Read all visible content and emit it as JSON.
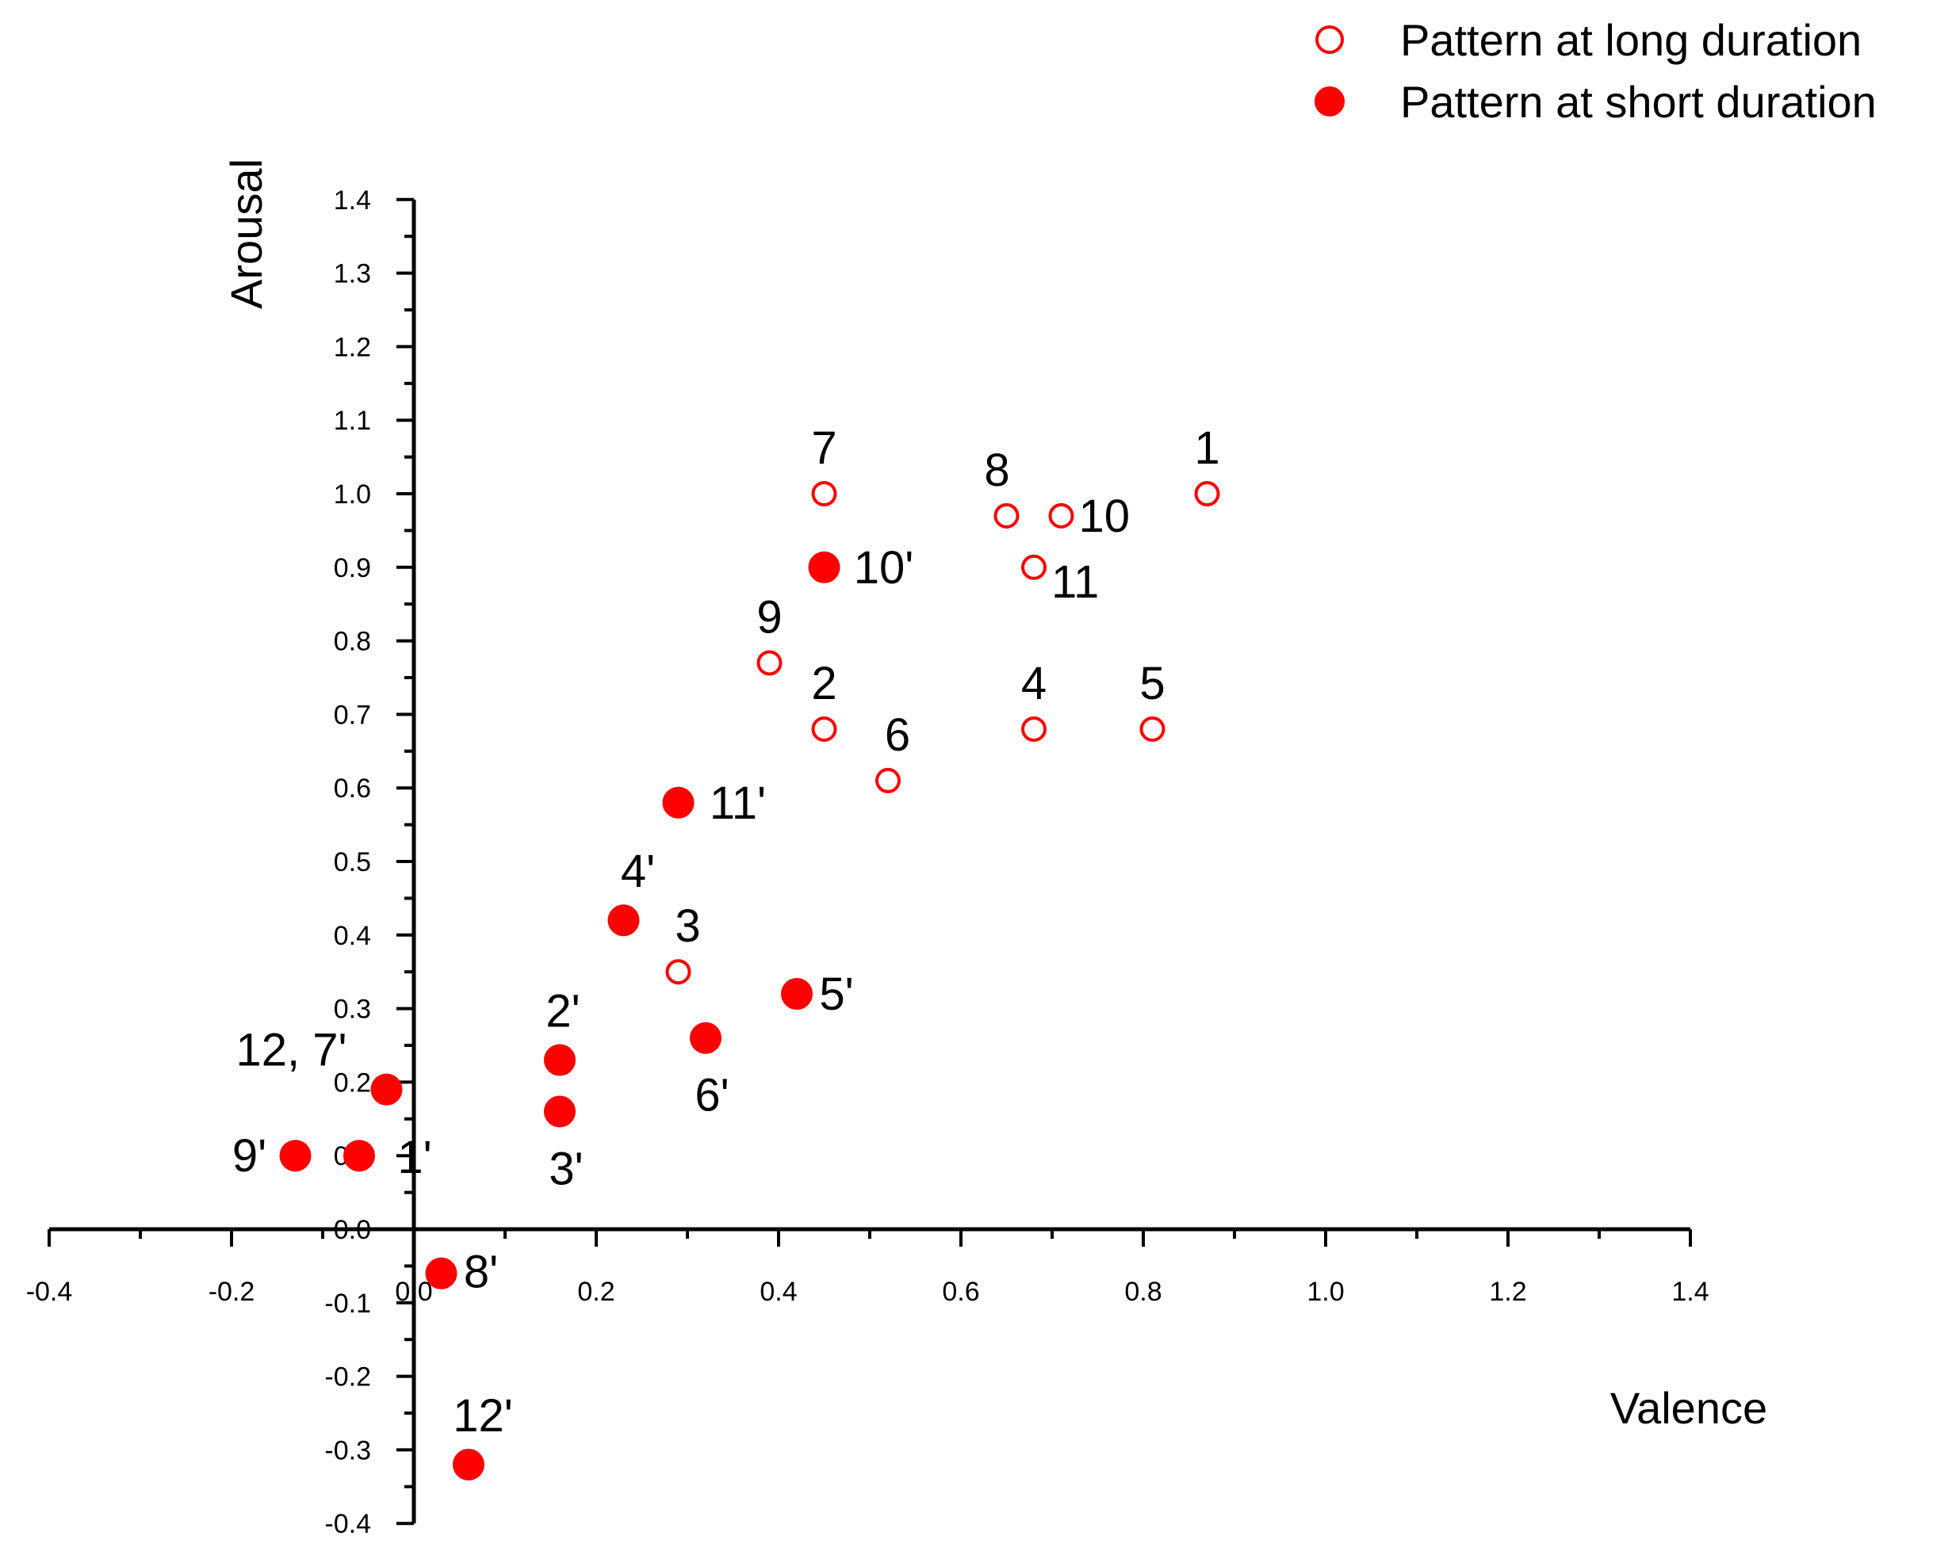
{
  "chart_data": {
    "type": "scatter",
    "title": "",
    "xlabel": "Valence",
    "ylabel": "Arousal",
    "xlim": [
      -0.4,
      1.4
    ],
    "ylim": [
      -0.4,
      1.4
    ],
    "x_ticks": [
      "-0.4",
      "-0.2",
      "0.0",
      "0.2",
      "0.4",
      "0.6",
      "0.8",
      "1.0",
      "1.2",
      "1.4"
    ],
    "y_ticks": [
      "-0.4",
      "-0.3",
      "-0.2",
      "-0.1",
      "0.0",
      "0.1",
      "0.2",
      "0.3",
      "0.4",
      "0.5",
      "0.6",
      "0.7",
      "0.8",
      "0.9",
      "1.0",
      "1.1",
      "1.2",
      "1.3",
      "1.4"
    ],
    "legend_position": "top-right",
    "colors": {
      "series": "#ff0000",
      "axis": "#000000"
    },
    "series": [
      {
        "name": "Pattern at long duration",
        "marker": "open-circle",
        "points": [
          {
            "label": "1",
            "x": 0.87,
            "y": 1.0
          },
          {
            "label": "2",
            "x": 0.45,
            "y": 0.68
          },
          {
            "label": "3",
            "x": 0.29,
            "y": 0.35
          },
          {
            "label": "4",
            "x": 0.68,
            "y": 0.68
          },
          {
            "label": "5",
            "x": 0.81,
            "y": 0.68
          },
          {
            "label": "6",
            "x": 0.52,
            "y": 0.61
          },
          {
            "label": "7",
            "x": 0.45,
            "y": 1.0
          },
          {
            "label": "8",
            "x": 0.65,
            "y": 0.97
          },
          {
            "label": "9",
            "x": 0.39,
            "y": 0.77
          },
          {
            "label": "10",
            "x": 0.71,
            "y": 0.97
          },
          {
            "label": "11",
            "x": 0.68,
            "y": 0.9
          }
        ]
      },
      {
        "name": "Pattern at short duration",
        "marker": "filled-circle",
        "points": [
          {
            "label": "1'",
            "x": -0.06,
            "y": 0.1
          },
          {
            "label": "2'",
            "x": 0.16,
            "y": 0.23
          },
          {
            "label": "3'",
            "x": 0.16,
            "y": 0.16
          },
          {
            "label": "4'",
            "x": 0.23,
            "y": 0.42
          },
          {
            "label": "5'",
            "x": 0.42,
            "y": 0.32
          },
          {
            "label": "6'",
            "x": 0.32,
            "y": 0.26
          },
          {
            "label": "12, 7'",
            "x": -0.03,
            "y": 0.19
          },
          {
            "label": "8'",
            "x": 0.03,
            "y": -0.06
          },
          {
            "label": "9'",
            "x": -0.13,
            "y": 0.1
          },
          {
            "label": "10'",
            "x": 0.45,
            "y": 0.9
          },
          {
            "label": "11'",
            "x": 0.29,
            "y": 0.58
          },
          {
            "label": "12'",
            "x": 0.06,
            "y": -0.32
          }
        ]
      }
    ]
  }
}
